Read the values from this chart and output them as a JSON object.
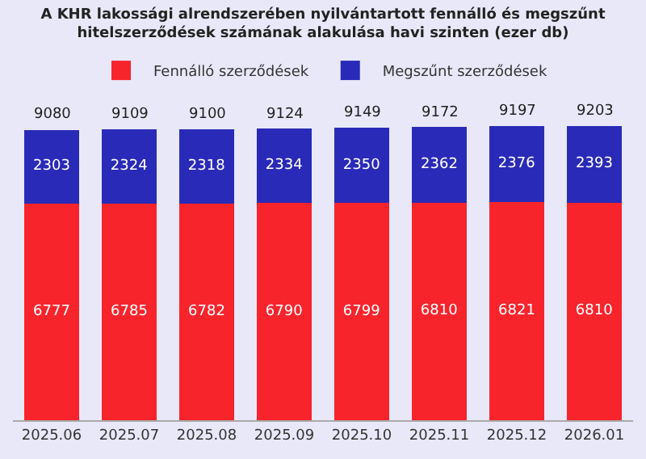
{
  "chart_data": {
    "type": "bar",
    "title": "A KHR lakossági alrendszerében nyilvántartott fennálló és megszűnt\nhitelszerződések számának alakulása havi szinten (ezer db)",
    "categories": [
      "2025.06",
      "2025.07",
      "2025.08",
      "2025.09",
      "2025.10",
      "2025.11",
      "2025.12",
      "2026.01"
    ],
    "stacked": true,
    "data_labels": true,
    "legend": "top",
    "grid": false,
    "series": [
      {
        "name": "Fennálló szerződések",
        "color": "#f8242c",
        "values": [
          6777,
          6785,
          6782,
          6790,
          6799,
          6810,
          6821,
          6810
        ]
      },
      {
        "name": "Megszűnt szerződések",
        "color": "#2a2ab8",
        "values": [
          2303,
          2324,
          2318,
          2334,
          2350,
          2362,
          2376,
          2393
        ]
      }
    ],
    "totals": [
      "9080",
      "9109",
      "9100",
      "9124",
      "9149",
      "9172",
      "9197",
      "9203"
    ]
  }
}
